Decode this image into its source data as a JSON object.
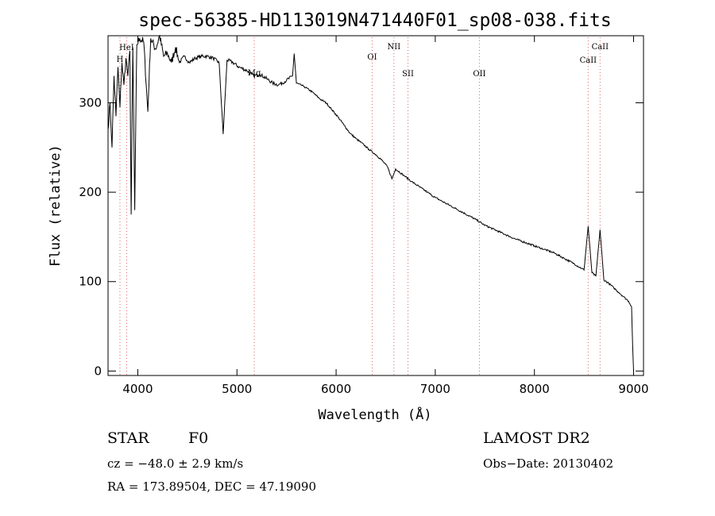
{
  "chart_data": {
    "type": "line",
    "title": "spec-56385-HD113019N471440F01_sp08-038.fits",
    "xlabel": "Wavelength (Å)",
    "ylabel": "Flux (relative)",
    "xlim": [
      3700,
      9100
    ],
    "ylim": [
      -5,
      375
    ],
    "xticks": [
      4000,
      5000,
      6000,
      7000,
      8000,
      9000
    ],
    "yticks": [
      0,
      100,
      200,
      300
    ],
    "series": [
      {
        "x": [
          3700,
          3720,
          3740,
          3760,
          3780,
          3800,
          3820,
          3840,
          3860,
          3880,
          3900,
          3920,
          3933,
          3950,
          3969,
          3990,
          4020,
          4060,
          4101,
          4130,
          4180,
          4220,
          4260,
          4300,
          4340,
          4380,
          4420,
          4470,
          4520,
          4580,
          4640,
          4700,
          4760,
          4820,
          4861,
          4900,
          4960,
          5020,
          5100,
          5170,
          5230,
          5300,
          5360,
          5420,
          5500,
          5560,
          5577,
          5600,
          5680,
          5760,
          5840,
          5900,
          5960,
          6020,
          6080,
          6140,
          6200,
          6280,
          6330,
          6400,
          6460,
          6520,
          6563,
          6600,
          6680,
          6760,
          6840,
          6920,
          7000,
          7100,
          7200,
          7300,
          7400,
          7500,
          7600,
          7700,
          7800,
          7900,
          8000,
          8100,
          8200,
          8300,
          8400,
          8500,
          8542,
          8580,
          8620,
          8662,
          8700,
          8750,
          8800,
          8850,
          8900,
          8950,
          8980,
          8990,
          9000
        ],
        "y": [
          270,
          300,
          250,
          330,
          285,
          340,
          295,
          345,
          320,
          350,
          330,
          358,
          175,
          362,
          180,
          365,
          372,
          368,
          290,
          372,
          360,
          375,
          352,
          355,
          345,
          362,
          345,
          352,
          345,
          350,
          352,
          352,
          350,
          345,
          265,
          348,
          345,
          340,
          336,
          330,
          332,
          327,
          322,
          320,
          325,
          330,
          355,
          322,
          318,
          312,
          304,
          300,
          292,
          284,
          275,
          266,
          260,
          253,
          248,
          242,
          236,
          228,
          215,
          226,
          219,
          212,
          206,
          200,
          194,
          188,
          182,
          176,
          170,
          163,
          158,
          153,
          148,
          144,
          140,
          136,
          132,
          126,
          120,
          113,
          162,
          110,
          106,
          158,
          102,
          98,
          93,
          88,
          83,
          78,
          72,
          30,
          0
        ]
      }
    ],
    "line_markers": [
      {
        "label": "HeI",
        "x": 3888
      },
      {
        "label": "H",
        "x": 3820
      },
      {
        "label": "Mg",
        "x": 5175
      },
      {
        "label": "OI",
        "x": 6364
      },
      {
        "label": "NII",
        "x": 6583
      },
      {
        "label": "SII",
        "x": 6725
      },
      {
        "label": "OII",
        "x": 7445
      },
      {
        "label": "CaII",
        "x": 8542
      },
      {
        "label": "CaII",
        "x": 8662
      }
    ]
  },
  "info": {
    "object_class": "STAR",
    "subclass": "F0",
    "survey": "LAMOST DR2",
    "redshift": "cz = −48.0 ± 2.9 km/s",
    "obs_date": "Obs−Date: 20130402",
    "coords": "RA = 173.89504, DEC =  47.19090"
  }
}
